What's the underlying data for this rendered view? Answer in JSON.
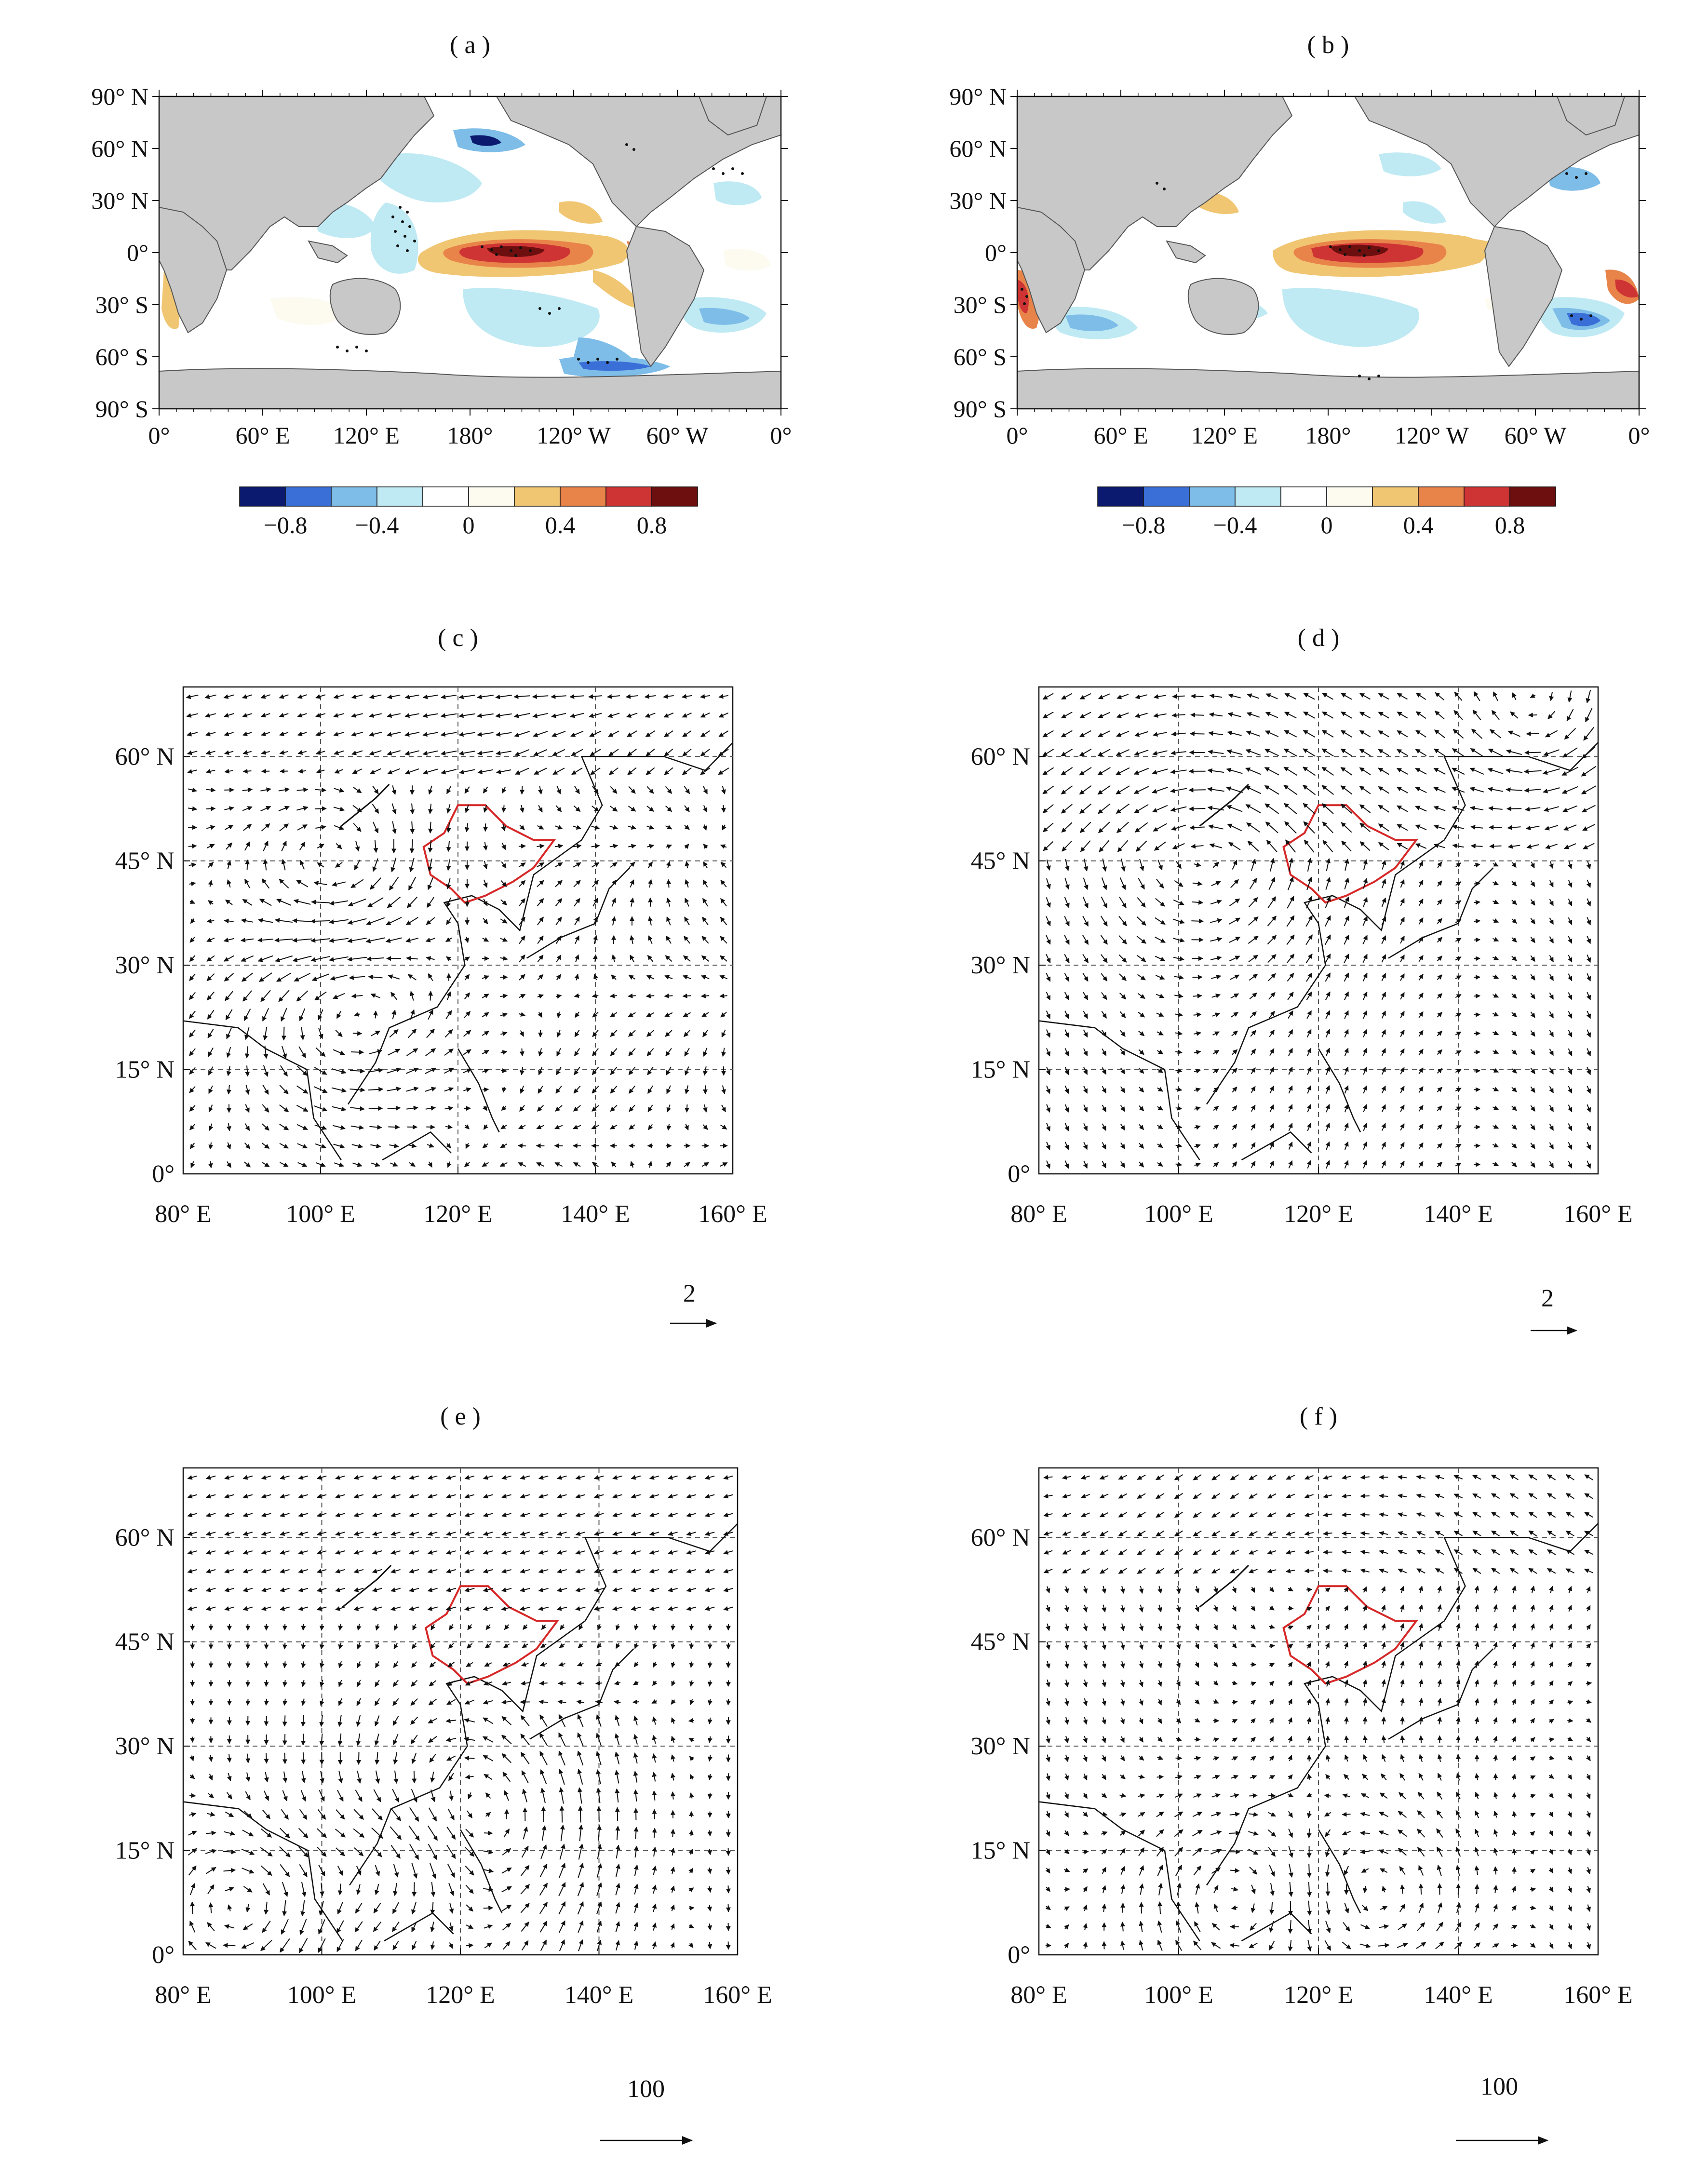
{
  "sst_panels": [
    {
      "label": "( a )",
      "lat_ticks": [
        "90° N",
        "60° N",
        "30° N",
        "0°",
        "30° S",
        "60° S",
        "90° S"
      ],
      "lon_ticks": [
        "0°",
        "60° E",
        "120° E",
        "180°",
        "120° W",
        "60° W",
        "0°"
      ],
      "colorbar": {
        "colors": [
          "#0b1a6e",
          "#3a6fd8",
          "#7dbde8",
          "#bfeaf3",
          "#ffffff",
          "#fdfbf0",
          "#f0c673",
          "#e8844a",
          "#cf3434",
          "#6e0f0f"
        ],
        "tick_labels": [
          "−0.8",
          "−0.4",
          "0",
          "0.4",
          "0.8"
        ]
      }
    },
    {
      "label": "( b )",
      "lat_ticks": [
        "90° N",
        "60° N",
        "30° N",
        "0°",
        "30° S",
        "60° S",
        "90° S"
      ],
      "lon_ticks": [
        "0°",
        "60° E",
        "120° E",
        "180°",
        "120° W",
        "60° W",
        "0°"
      ],
      "colorbar": {
        "colors": [
          "#0b1a6e",
          "#3a6fd8",
          "#7dbde8",
          "#bfeaf3",
          "#ffffff",
          "#fdfbf0",
          "#f0c673",
          "#e8844a",
          "#cf3434",
          "#6e0f0f"
        ],
        "tick_labels": [
          "−0.8",
          "−0.4",
          "0",
          "0.4",
          "0.8"
        ]
      }
    }
  ],
  "wind_panels": [
    {
      "label": "( c )",
      "lat_ticks": [
        "60° N",
        "45° N",
        "30° N",
        "15° N",
        "0°"
      ],
      "lon_ticks": [
        "80° E",
        "100° E",
        "120° E",
        "140° E",
        "160° E"
      ],
      "ref_label": "2"
    },
    {
      "label": "( d )",
      "lat_ticks": [
        "60° N",
        "45° N",
        "30° N",
        "15° N",
        "0°"
      ],
      "lon_ticks": [
        "80° E",
        "100° E",
        "120° E",
        "140° E",
        "160° E"
      ],
      "ref_label": "2"
    },
    {
      "label": "( e )",
      "lat_ticks": [
        "60° N",
        "45° N",
        "30° N",
        "15° N",
        "0°"
      ],
      "lon_ticks": [
        "80° E",
        "100° E",
        "120° E",
        "140° E",
        "160° E"
      ],
      "ref_label": "100"
    },
    {
      "label": "( f )",
      "lat_ticks": [
        "60° N",
        "45° N",
        "30° N",
        "15° N",
        "0°"
      ],
      "lon_ticks": [
        "80° E",
        "100° E",
        "120° E",
        "140° E",
        "160° E"
      ],
      "ref_label": "100"
    }
  ],
  "colors": {
    "land": "#c8c8c8",
    "region_outline": "#d62828",
    "ocean": "#ffffff"
  }
}
